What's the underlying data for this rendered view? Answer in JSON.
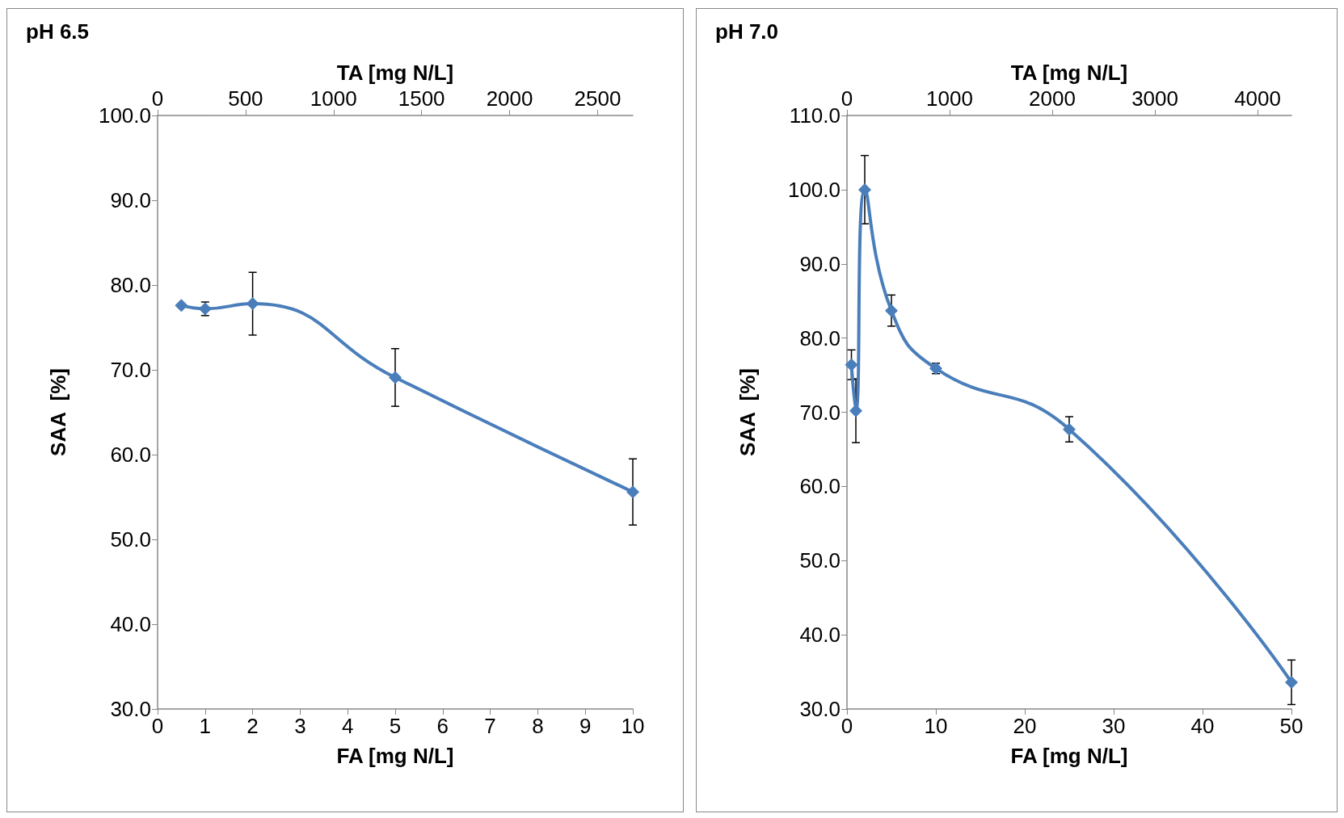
{
  "chart_data": [
    {
      "type": "line",
      "title": "pH 6.5",
      "xlabel": "FA [mg N/L]",
      "ylabel": "SAA  [%]",
      "x2label": "TA [mg N/L]",
      "x": [
        0.5,
        1,
        2,
        5,
        10
      ],
      "series": [
        {
          "color": "#4a7ebb",
          "values": [
            77.6,
            77.2,
            77.8,
            69.1,
            55.6
          ],
          "errors": [
            null,
            0.8,
            3.7,
            3.4,
            3.9
          ]
        }
      ],
      "xlim": [
        0,
        10
      ],
      "xticks": [
        0,
        1,
        2,
        3,
        4,
        5,
        6,
        7,
        8,
        9,
        10
      ],
      "x2lim": [
        0,
        2700
      ],
      "x2ticks": [
        0,
        500,
        1000,
        1500,
        2000,
        2500
      ],
      "ylim": [
        30,
        100
      ],
      "yticks": [
        {
          "value": 30,
          "label": "30.0"
        },
        {
          "value": 40,
          "label": "40.0"
        },
        {
          "value": 50,
          "label": "50.0"
        },
        {
          "value": 60,
          "label": "60.0"
        },
        {
          "value": 70,
          "label": "70.0"
        },
        {
          "value": 80,
          "label": "80.0"
        },
        {
          "value": 90,
          "label": "90.0"
        },
        {
          "value": 100,
          "label": "100.0"
        }
      ],
      "marker": "diamond",
      "line_style": "solid",
      "grid": false
    },
    {
      "type": "line",
      "title": "pH 7.0",
      "xlabel": "FA [mg N/L]",
      "ylabel": "SAA  [%]",
      "x2label": "TA [mg N/L]",
      "x": [
        0.5,
        1,
        2,
        5,
        10,
        25,
        50
      ],
      "series": [
        {
          "color": "#4a7ebb",
          "values": [
            76.4,
            70.2,
            100.0,
            83.7,
            75.9,
            67.7,
            33.6
          ],
          "errors": [
            2.0,
            4.3,
            4.6,
            2.1,
            0.7,
            1.7,
            3.0
          ]
        }
      ],
      "xlim": [
        0,
        50
      ],
      "xticks": [
        0,
        10,
        20,
        30,
        40,
        50
      ],
      "x2lim": [
        0,
        4330
      ],
      "x2ticks": [
        0,
        1000,
        2000,
        3000,
        4000
      ],
      "ylim": [
        30,
        110
      ],
      "yticks": [
        {
          "value": 30,
          "label": "30.0"
        },
        {
          "value": 40,
          "label": "40.0"
        },
        {
          "value": 50,
          "label": "50.0"
        },
        {
          "value": 60,
          "label": "60.0"
        },
        {
          "value": 70,
          "label": "70.0"
        },
        {
          "value": 80,
          "label": "80.0"
        },
        {
          "value": 90,
          "label": "90.0"
        },
        {
          "value": 100,
          "label": "100.0"
        },
        {
          "value": 110,
          "label": "110.0"
        }
      ],
      "marker": "diamond",
      "line_style": "solid",
      "grid": false
    }
  ]
}
